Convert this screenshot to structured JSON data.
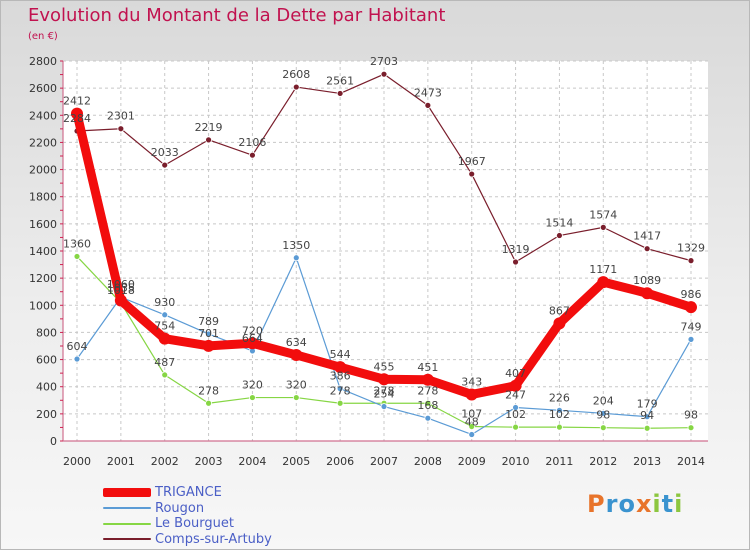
{
  "chart_data": {
    "type": "line",
    "title": "Evolution du Montant de la Dette par Habitant",
    "subtitle": "(en €)",
    "x": [
      "2000",
      "2001",
      "2002",
      "2003",
      "2004",
      "2005",
      "2006",
      "2007",
      "2008",
      "2009",
      "2010",
      "2011",
      "2012",
      "2013",
      "2014"
    ],
    "ylim": [
      0,
      2800
    ],
    "yticks": [
      0,
      200,
      400,
      600,
      800,
      1000,
      1200,
      1400,
      1600,
      1800,
      2000,
      2200,
      2400,
      2600,
      2800
    ],
    "grid": true,
    "legend_position": "bottom-left",
    "series": [
      {
        "name": "Comps-sur-Artuby",
        "color": "#7a1e2c",
        "values": [
          2284,
          2301,
          2033,
          2219,
          2106,
          2608,
          2561,
          2703,
          2473,
          1967,
          1319,
          1514,
          1574,
          1417,
          1329
        ]
      },
      {
        "name": "Le Bourguet",
        "color": "#86d644",
        "values": [
          1360,
          1018,
          487,
          278,
          320,
          320,
          278,
          278,
          278,
          107,
          102,
          102,
          98,
          94,
          98
        ]
      },
      {
        "name": "Rougon",
        "color": "#5b9bd5",
        "values": [
          604,
          1060,
          930,
          789,
          664,
          1350,
          386,
          254,
          168,
          48,
          247,
          226,
          204,
          179,
          749
        ]
      },
      {
        "name": "TRIGANCE",
        "color": "#f20d0d",
        "values": [
          2412,
          1035,
          754,
          701,
          720,
          634,
          544,
          455,
          451,
          343,
          407,
          867,
          1171,
          1089,
          986
        ]
      }
    ]
  },
  "legend": [
    {
      "label": "TRIGANCE",
      "color": "#f20d0d"
    },
    {
      "label": "Rougon",
      "color": "#5b9bd5"
    },
    {
      "label": "Le Bourguet",
      "color": "#86d644"
    },
    {
      "label": "Comps-sur-Artuby",
      "color": "#7a1e2c"
    }
  ],
  "logo": {
    "letters": [
      "P",
      "r",
      "o",
      "x",
      "i",
      "t",
      "i"
    ],
    "colors": [
      "#e8742b",
      "#3a93cf",
      "#3a93cf",
      "#e8742b",
      "#8cc63f",
      "#3a93cf",
      "#8cc63f"
    ]
  }
}
